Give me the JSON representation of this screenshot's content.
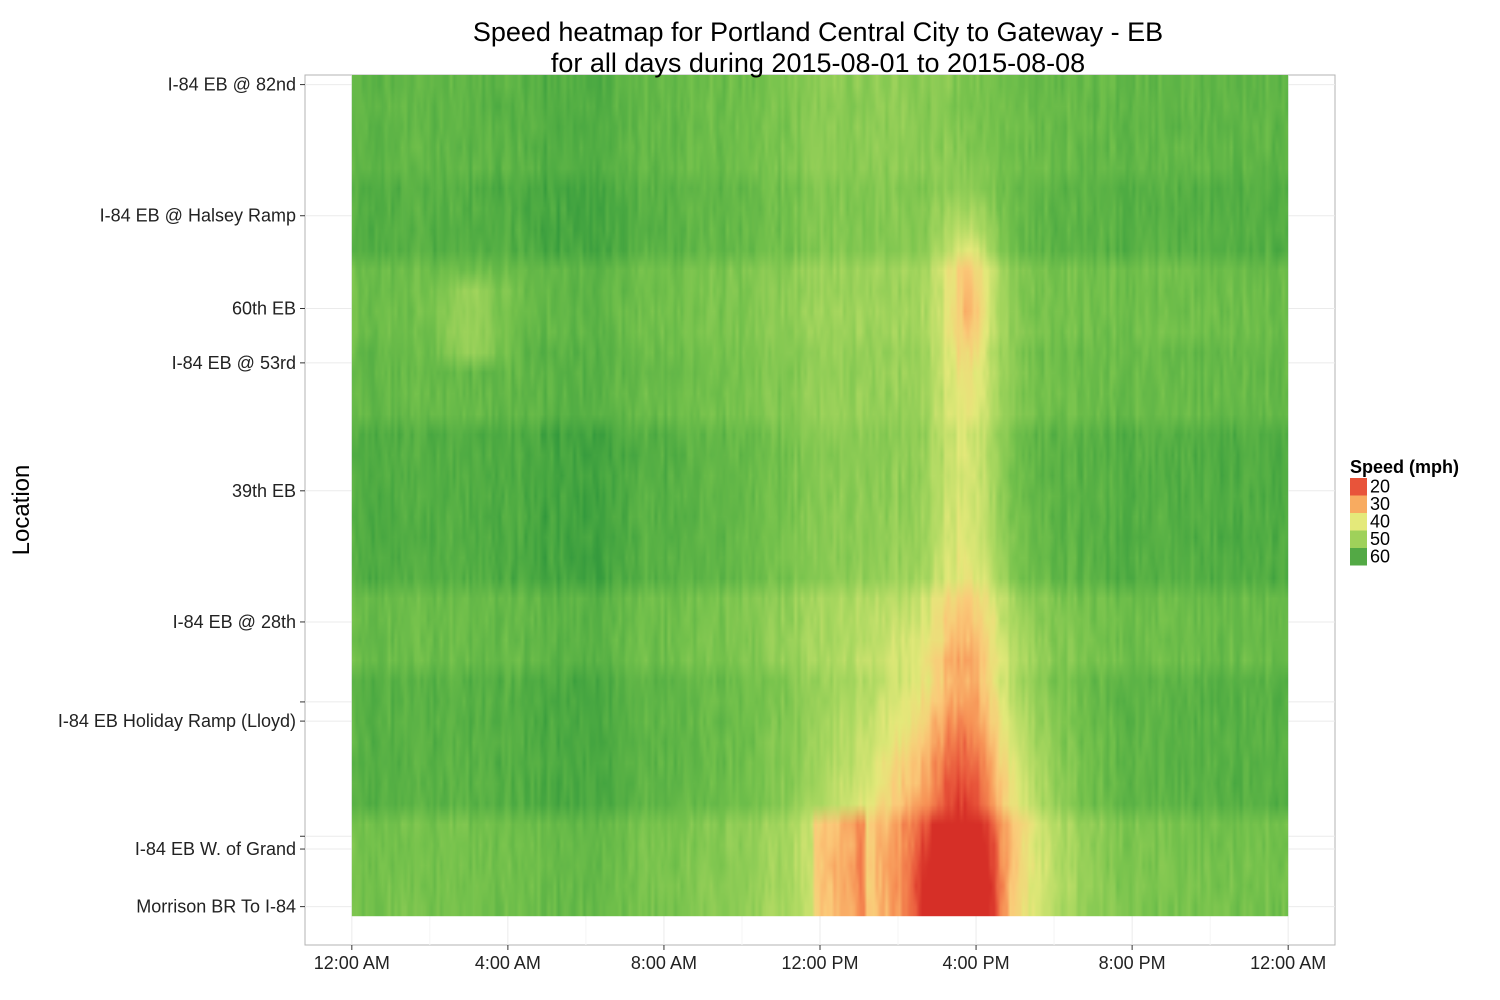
{
  "chart_data": {
    "type": "heatmap",
    "title": "Speed heatmap for Portland Central City to Gateway - EB",
    "subtitle": "for all days during 2015-08-01 to 2015-08-08",
    "xlabel": "",
    "ylabel": "Location",
    "x_unit": "hour of day",
    "xlim": [
      -1.2,
      25.2
    ],
    "x_ticks": [
      {
        "value": 0,
        "label": "12:00 AM"
      },
      {
        "value": 4,
        "label": "4:00 AM"
      },
      {
        "value": 8,
        "label": "8:00 AM"
      },
      {
        "value": 12,
        "label": "12:00 PM"
      },
      {
        "value": 16,
        "label": "4:00 PM"
      },
      {
        "value": 20,
        "label": "8:00 PM"
      },
      {
        "value": 24,
        "label": "12:00 AM"
      }
    ],
    "y_unit": "miles from Morrison BR",
    "ylim": [
      -0.12,
      2.6
    ],
    "locations": [
      {
        "label": "Morrison BR To I-84",
        "pos": 0.0
      },
      {
        "label": "I-84 EB W. of Grand",
        "pos": 0.18
      },
      {
        "label": "",
        "pos": 0.22
      },
      {
        "label": "I-84 EB Holiday Ramp (Lloyd)",
        "pos": 0.58
      },
      {
        "label": "",
        "pos": 0.64
      },
      {
        "label": "I-84 EB @ 28th",
        "pos": 0.89
      },
      {
        "label": "39th EB",
        "pos": 1.3
      },
      {
        "label": "I-84 EB @ 53rd",
        "pos": 1.7
      },
      {
        "label": "60th EB",
        "pos": 1.87
      },
      {
        "label": "I-84 EB @ Halsey Ramp",
        "pos": 2.16
      },
      {
        "label": "I-84 EB @ 82nd",
        "pos": 2.57
      }
    ],
    "data_extent": {
      "x": [
        0,
        24
      ],
      "y": [
        -0.03,
        2.6
      ]
    },
    "speed_range_mph": [
      18,
      64
    ],
    "legend": {
      "title": "Speed (mph)",
      "position": "right",
      "entries": [
        {
          "label": "20",
          "color": "#e8543a"
        },
        {
          "label": "30",
          "color": "#f8ab60"
        },
        {
          "label": "40",
          "color": "#e4e97a"
        },
        {
          "label": "50",
          "color": "#9fd15a"
        },
        {
          "label": "60",
          "color": "#53a945"
        }
      ]
    },
    "summary": "Free-flow speeds around 55-62 mph overnight and morning; an evening-peak slowdown from about 12:00 PM to 7:30 PM, most severe (about 18-25 mph) near Morrison BR / W. of Grand at around 3:00-4:30 PM, with a narrow 35-45 mph band reaching up to 60th EB around 4:00 PM."
  }
}
